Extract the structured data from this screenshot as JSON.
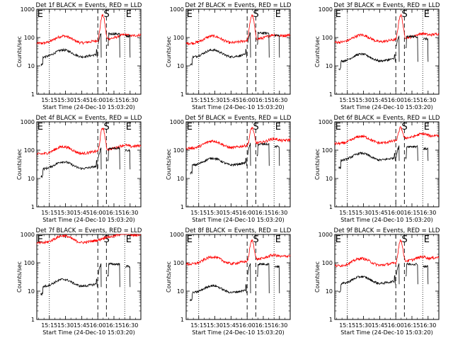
{
  "chart_data": {
    "type": "line",
    "layout": "3x3 grid",
    "ylabel": "Counts/sec",
    "xlabel": "Start Time (24-Dec-10 15:03:20)",
    "x_tick_labels": [
      "15:15",
      "15:30",
      "15:45",
      "16:00",
      "16:15",
      "16:30"
    ],
    "x_tick_minutes": [
      15,
      30,
      45,
      60,
      75,
      90
    ],
    "xlim_minutes": [
      3.33,
      100
    ],
    "ylim": [
      1,
      1000
    ],
    "y_scale": "log",
    "y_tick_labels": [
      "1",
      "10",
      "100",
      "1000"
    ],
    "y_tick_values": [
      1,
      10,
      100,
      1000
    ],
    "colors": {
      "events": "#000000",
      "lld": "#ff0000"
    },
    "dotted_marker_minutes": [
      15,
      85
    ],
    "dashed_marker_minutes": [
      60,
      68
    ],
    "flag_labels": {
      "E_left": "E",
      "S": "S",
      "E_right": "E"
    },
    "flag_minutes": {
      "E_left": 3.8,
      "S": 65.5,
      "E_right": 86
    },
    "panels": [
      {
        "title": "Det 1f BLACK = Events, RED = LLD",
        "lld_base": 100,
        "events_base": 28,
        "lld_peak": 900,
        "events_peak": 150
      },
      {
        "title": "Det 2f BLACK = Events, RED = LLD",
        "lld_base": 100,
        "events_base": 28,
        "lld_peak": 900,
        "events_peak": 160
      },
      {
        "title": "Det 3f BLACK = Events, RED = LLD",
        "lld_base": 110,
        "events_base": 20,
        "lld_peak": 900,
        "events_peak": 120
      },
      {
        "title": "Det 4f BLACK = Events, RED = LLD",
        "lld_base": 120,
        "events_base": 30,
        "lld_peak": 900,
        "events_peak": 130
      },
      {
        "title": "Det 5f BLACK = Events, RED = LLD",
        "lld_base": 200,
        "events_base": 40,
        "lld_peak": 900,
        "events_peak": 180
      },
      {
        "title": "Det 6f BLACK = Events, RED = LLD",
        "lld_base": 300,
        "events_base": 60,
        "lld_peak": 900,
        "events_peak": 150
      },
      {
        "title": "Det 7f BLACK = Events, RED = LLD",
        "lld_base": 900,
        "events_base": 20,
        "lld_peak": 1000,
        "events_peak": 100
      },
      {
        "title": "Det 8f BLACK = Events, RED = LLD",
        "lld_base": 150,
        "events_base": 12,
        "lld_peak": 900,
        "events_peak": 100
      },
      {
        "title": "Det 9f BLACK = Events, RED = LLD",
        "lld_base": 130,
        "events_base": 25,
        "lld_peak": 900,
        "events_peak": 100
      }
    ]
  }
}
